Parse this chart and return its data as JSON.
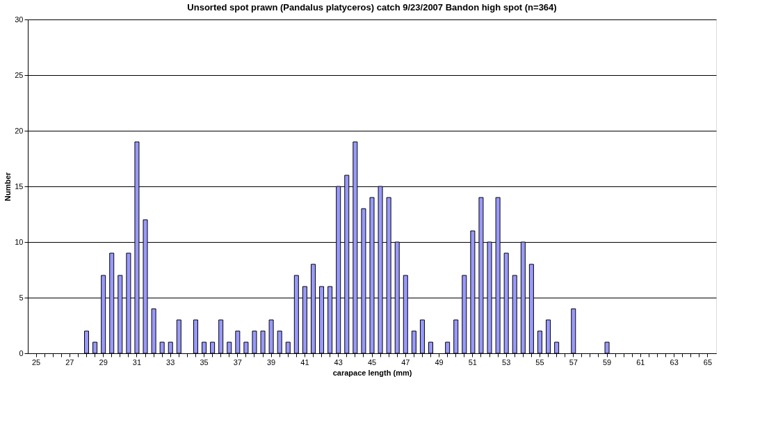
{
  "chart_data": {
    "type": "bar",
    "title": "Unsorted spot prawn (Pandalus platyceros) catch 9/23/2007 Bandon high spot (n=364)",
    "xlabel": "carapace length (mm)",
    "ylabel": "Number",
    "categories": [
      "25",
      null,
      null,
      null,
      "27",
      null,
      null,
      null,
      "29",
      null,
      null,
      null,
      "31",
      null,
      null,
      null,
      "33",
      null,
      null,
      null,
      "35",
      null,
      null,
      null,
      "37",
      null,
      null,
      null,
      "39",
      null,
      null,
      null,
      "41",
      null,
      null,
      null,
      "43",
      null,
      null,
      null,
      "45",
      null,
      null,
      null,
      "47",
      null,
      null,
      null,
      "49",
      null,
      null,
      null,
      "51",
      null,
      null,
      null,
      "53",
      null,
      null,
      null,
      "55",
      null,
      null,
      null,
      "57",
      null,
      null,
      null,
      "59",
      null,
      null,
      null,
      "61",
      null,
      null,
      null,
      "63",
      null,
      null,
      null,
      "65"
    ],
    "values": [
      0,
      0,
      0,
      0,
      0,
      0,
      2,
      1,
      7,
      9,
      7,
      9,
      19,
      12,
      4,
      1,
      1,
      3,
      0,
      3,
      1,
      1,
      3,
      1,
      2,
      1,
      2,
      2,
      3,
      2,
      1,
      7,
      6,
      8,
      6,
      6,
      15,
      16,
      19,
      13,
      14,
      15,
      14,
      10,
      7,
      2,
      3,
      1,
      0,
      1,
      3,
      7,
      11,
      14,
      10,
      14,
      9,
      7,
      10,
      8,
      2,
      3,
      1,
      0,
      4,
      0,
      0,
      0,
      1,
      0,
      0,
      0,
      0,
      0,
      0,
      0,
      0,
      0,
      0,
      0,
      0
    ],
    "color": "#9999ff",
    "ylim": [
      0,
      30
    ],
    "yticks": [
      0,
      5,
      10,
      15,
      20,
      25,
      30
    ],
    "grid": "y"
  }
}
